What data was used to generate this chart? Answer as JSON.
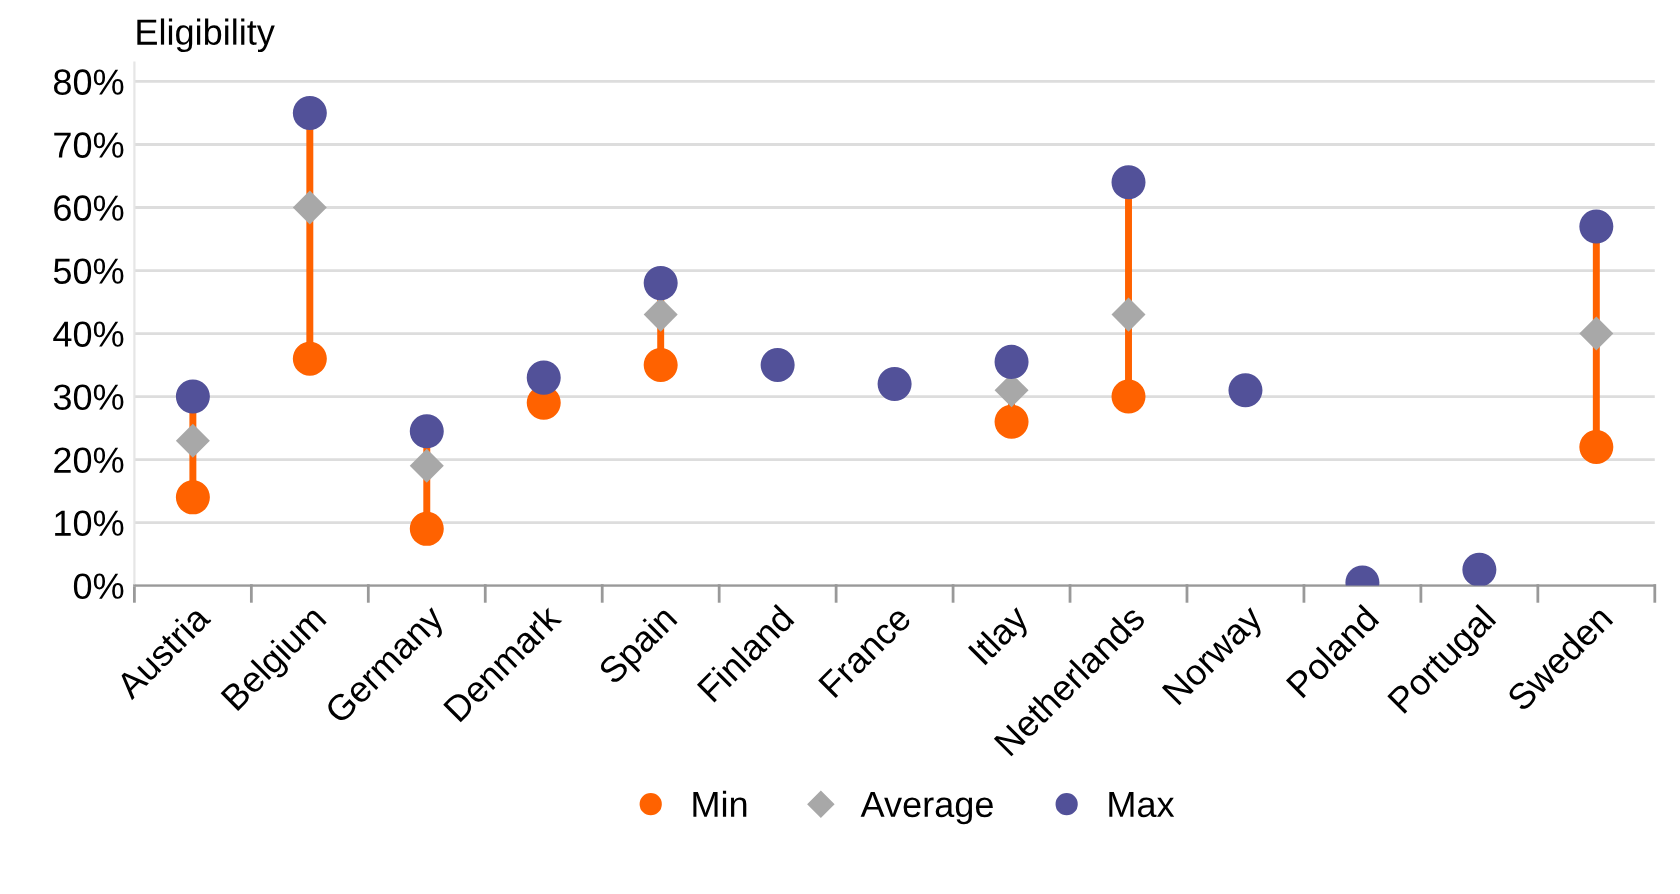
{
  "chart_data": {
    "type": "scatter",
    "ylabel": "Eligibility",
    "categories": [
      "Austria",
      "Belgium",
      "Germany",
      "Denmark",
      "Spain",
      "Finland",
      "France",
      "Itlay",
      "Netherlands",
      "Norway",
      "Poland",
      "Portugal",
      "Sweden"
    ],
    "series": [
      {
        "name": "Min",
        "color": "#ff6200",
        "marker": "circle",
        "values": [
          14,
          36,
          9,
          29,
          35,
          null,
          null,
          26,
          30,
          null,
          null,
          null,
          22
        ]
      },
      {
        "name": "Average",
        "color": "#a8a8a8",
        "marker": "diamond",
        "values": [
          23,
          60,
          19,
          null,
          43,
          null,
          null,
          31,
          43,
          null,
          null,
          null,
          40
        ]
      },
      {
        "name": "Max",
        "color": "#525199",
        "marker": "circle",
        "values": [
          30,
          75,
          24.5,
          33,
          48,
          35,
          32,
          35.5,
          64,
          31,
          0.5,
          2.5,
          57
        ]
      }
    ],
    "ylim": [
      0,
      83
    ],
    "yticks": [
      {
        "value": 0,
        "label": "0%"
      },
      {
        "value": 10,
        "label": "10%"
      },
      {
        "value": 20,
        "label": "20%"
      },
      {
        "value": 30,
        "label": "30%"
      },
      {
        "value": 40,
        "label": "40%"
      },
      {
        "value": 50,
        "label": "50%"
      },
      {
        "value": 60,
        "label": "60%"
      },
      {
        "value": 70,
        "label": "70%"
      },
      {
        "value": 80,
        "label": "80%"
      }
    ],
    "grid": "y",
    "legend": "bottom"
  }
}
